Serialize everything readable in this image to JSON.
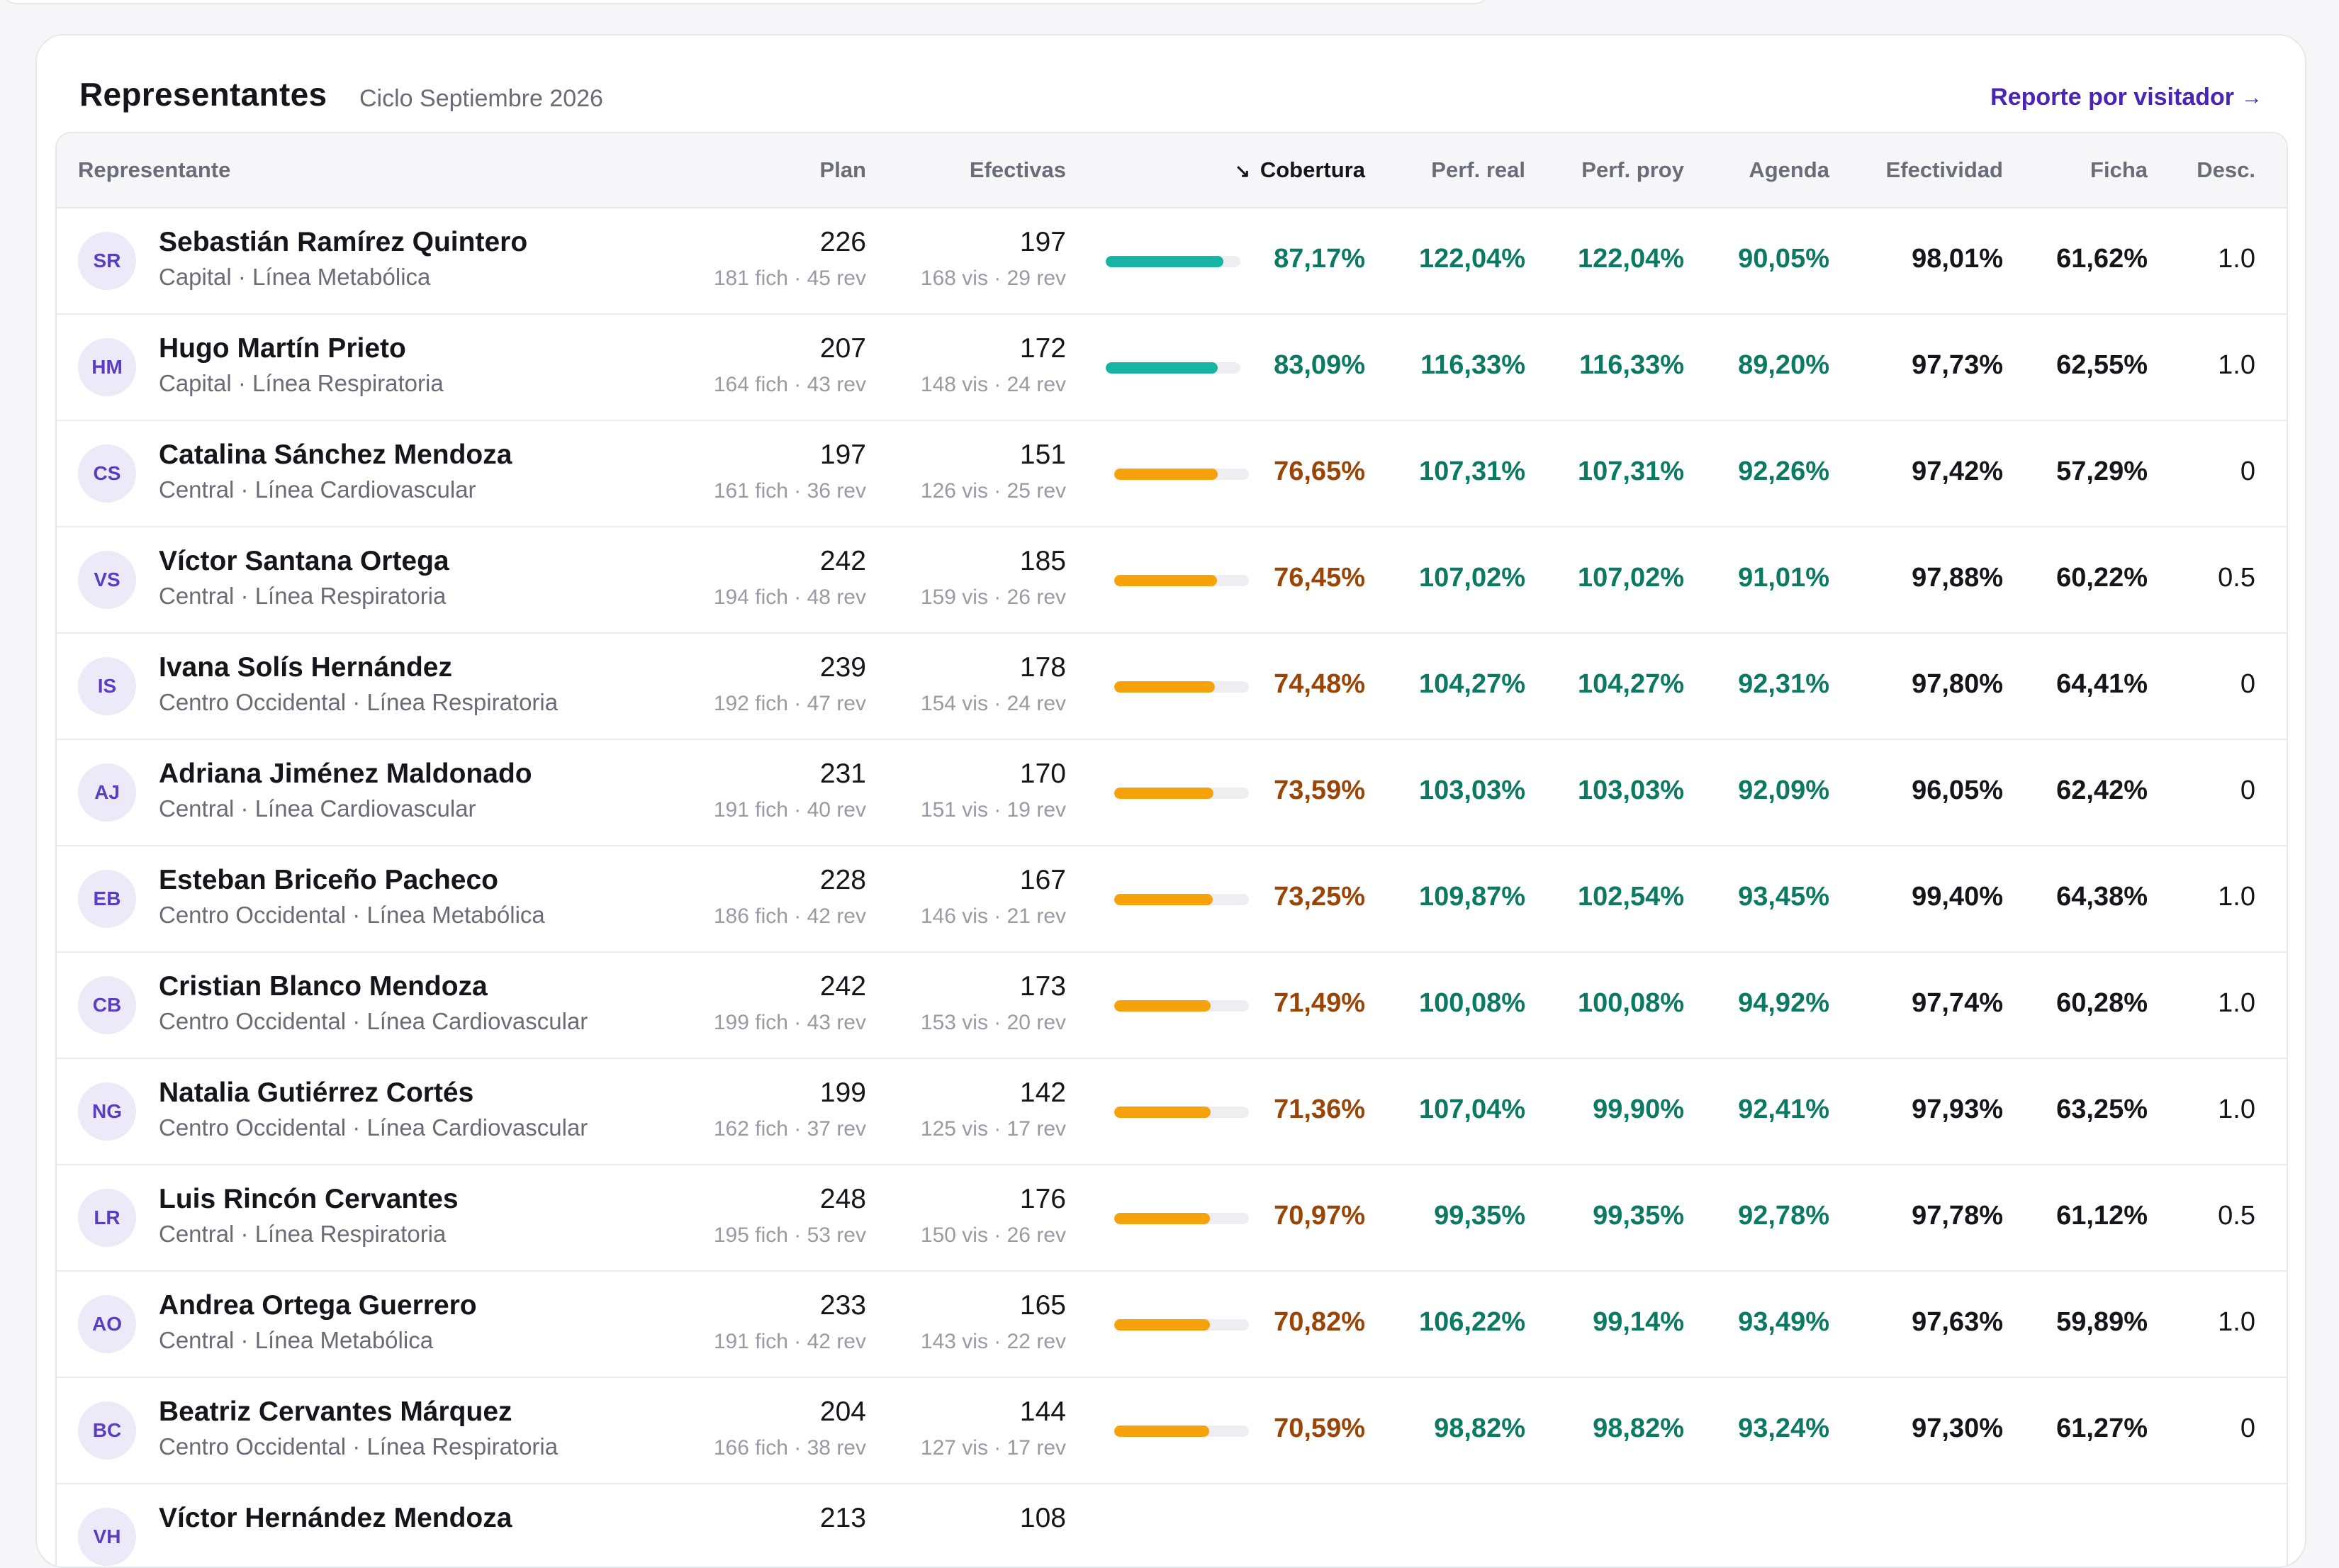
{
  "header": {
    "title": "Representantes",
    "subtitle": "Ciclo Septiembre 2026",
    "report_link": "Reporte por visitador",
    "report_arrow": "→"
  },
  "columns": {
    "representante": "Representante",
    "plan": "Plan",
    "efectivas": "Efectivas",
    "cobertura": "Cobertura",
    "perf_real": "Perf. real",
    "perf_proy": "Perf. proy",
    "agenda": "Agenda",
    "efectividad": "Efectividad",
    "ficha": "Ficha",
    "desc": "Desc.",
    "sort_icon": "↘"
  },
  "colors": {
    "teal": "#17b3a3",
    "amber": "#f5a20c",
    "green_text": "#0c7a63",
    "brown_text": "#9a4508",
    "accent": "#4a24b5"
  },
  "rows": [
    {
      "initials": "SR",
      "name": "Sebastián Ramírez Quintero",
      "meta": "Capital · Línea Metabólica",
      "plan": "226",
      "plan_sub": "181 fich · 45 rev",
      "efectivas": "197",
      "efectivas_sub": "168 vis · 29 rev",
      "cobertura": "87,17%",
      "cov_value": 87.17,
      "perf_real": "122,04%",
      "perf_proy": "122,04%",
      "agenda": "90,05%",
      "efectividad": "98,01%",
      "ficha": "61,62%",
      "desc": "1.0"
    },
    {
      "initials": "HM",
      "name": "Hugo Martín Prieto",
      "meta": "Capital · Línea Respiratoria",
      "plan": "207",
      "plan_sub": "164 fich · 43 rev",
      "efectivas": "172",
      "efectivas_sub": "148 vis · 24 rev",
      "cobertura": "83,09%",
      "cov_value": 83.09,
      "perf_real": "116,33%",
      "perf_proy": "116,33%",
      "agenda": "89,20%",
      "efectividad": "97,73%",
      "ficha": "62,55%",
      "desc": "1.0"
    },
    {
      "initials": "CS",
      "name": "Catalina Sánchez Mendoza",
      "meta": "Central · Línea Cardiovascular",
      "plan": "197",
      "plan_sub": "161 fich · 36 rev",
      "efectivas": "151",
      "efectivas_sub": "126 vis · 25 rev",
      "cobertura": "76,65%",
      "cov_value": 76.65,
      "perf_real": "107,31%",
      "perf_proy": "107,31%",
      "agenda": "92,26%",
      "efectividad": "97,42%",
      "ficha": "57,29%",
      "desc": "0"
    },
    {
      "initials": "VS",
      "name": "Víctor Santana Ortega",
      "meta": "Central · Línea Respiratoria",
      "plan": "242",
      "plan_sub": "194 fich · 48 rev",
      "efectivas": "185",
      "efectivas_sub": "159 vis · 26 rev",
      "cobertura": "76,45%",
      "cov_value": 76.45,
      "perf_real": "107,02%",
      "perf_proy": "107,02%",
      "agenda": "91,01%",
      "efectividad": "97,88%",
      "ficha": "60,22%",
      "desc": "0.5"
    },
    {
      "initials": "IS",
      "name": "Ivana Solís Hernández",
      "meta": "Centro Occidental · Línea Respiratoria",
      "plan": "239",
      "plan_sub": "192 fich · 47 rev",
      "efectivas": "178",
      "efectivas_sub": "154 vis · 24 rev",
      "cobertura": "74,48%",
      "cov_value": 74.48,
      "perf_real": "104,27%",
      "perf_proy": "104,27%",
      "agenda": "92,31%",
      "efectividad": "97,80%",
      "ficha": "64,41%",
      "desc": "0"
    },
    {
      "initials": "AJ",
      "name": "Adriana Jiménez Maldonado",
      "meta": "Central · Línea Cardiovascular",
      "plan": "231",
      "plan_sub": "191 fich · 40 rev",
      "efectivas": "170",
      "efectivas_sub": "151 vis · 19 rev",
      "cobertura": "73,59%",
      "cov_value": 73.59,
      "perf_real": "103,03%",
      "perf_proy": "103,03%",
      "agenda": "92,09%",
      "efectividad": "96,05%",
      "ficha": "62,42%",
      "desc": "0"
    },
    {
      "initials": "EB",
      "name": "Esteban Briceño Pacheco",
      "meta": "Centro Occidental · Línea Metabólica",
      "plan": "228",
      "plan_sub": "186 fich · 42 rev",
      "efectivas": "167",
      "efectivas_sub": "146 vis · 21 rev",
      "cobertura": "73,25%",
      "cov_value": 73.25,
      "perf_real": "109,87%",
      "perf_proy": "102,54%",
      "agenda": "93,45%",
      "efectividad": "99,40%",
      "ficha": "64,38%",
      "desc": "1.0"
    },
    {
      "initials": "CB",
      "name": "Cristian Blanco Mendoza",
      "meta": "Centro Occidental · Línea Cardiovascular",
      "plan": "242",
      "plan_sub": "199 fich · 43 rev",
      "efectivas": "173",
      "efectivas_sub": "153 vis · 20 rev",
      "cobertura": "71,49%",
      "cov_value": 71.49,
      "perf_real": "100,08%",
      "perf_proy": "100,08%",
      "agenda": "94,92%",
      "efectividad": "97,74%",
      "ficha": "60,28%",
      "desc": "1.0"
    },
    {
      "initials": "NG",
      "name": "Natalia Gutiérrez Cortés",
      "meta": "Centro Occidental · Línea Cardiovascular",
      "plan": "199",
      "plan_sub": "162 fich · 37 rev",
      "efectivas": "142",
      "efectivas_sub": "125 vis · 17 rev",
      "cobertura": "71,36%",
      "cov_value": 71.36,
      "perf_real": "107,04%",
      "perf_proy": "99,90%",
      "agenda": "92,41%",
      "efectividad": "97,93%",
      "ficha": "63,25%",
      "desc": "1.0"
    },
    {
      "initials": "LR",
      "name": "Luis Rincón Cervantes",
      "meta": "Central · Línea Respiratoria",
      "plan": "248",
      "plan_sub": "195 fich · 53 rev",
      "efectivas": "176",
      "efectivas_sub": "150 vis · 26 rev",
      "cobertura": "70,97%",
      "cov_value": 70.97,
      "perf_real": "99,35%",
      "perf_proy": "99,35%",
      "agenda": "92,78%",
      "efectividad": "97,78%",
      "ficha": "61,12%",
      "desc": "0.5"
    },
    {
      "initials": "AO",
      "name": "Andrea Ortega Guerrero",
      "meta": "Central · Línea Metabólica",
      "plan": "233",
      "plan_sub": "191 fich · 42 rev",
      "efectivas": "165",
      "efectivas_sub": "143 vis · 22 rev",
      "cobertura": "70,82%",
      "cov_value": 70.82,
      "perf_real": "106,22%",
      "perf_proy": "99,14%",
      "agenda": "93,49%",
      "efectividad": "97,63%",
      "ficha": "59,89%",
      "desc": "1.0"
    },
    {
      "initials": "BC",
      "name": "Beatriz Cervantes Márquez",
      "meta": "Centro Occidental · Línea Respiratoria",
      "plan": "204",
      "plan_sub": "166 fich · 38 rev",
      "efectivas": "144",
      "efectivas_sub": "127 vis · 17 rev",
      "cobertura": "70,59%",
      "cov_value": 70.59,
      "perf_real": "98,82%",
      "perf_proy": "98,82%",
      "agenda": "93,24%",
      "efectividad": "97,30%",
      "ficha": "61,27%",
      "desc": "0"
    },
    {
      "initials": "VH",
      "name": "Víctor Hernández Mendoza",
      "meta": "",
      "plan": "213",
      "plan_sub": "",
      "efectivas": "108",
      "efectivas_sub": "",
      "cobertura": "",
      "cov_value": null,
      "perf_real": "",
      "perf_proy": "",
      "agenda": "",
      "efectividad": "",
      "ficha": "",
      "desc": ""
    }
  ]
}
